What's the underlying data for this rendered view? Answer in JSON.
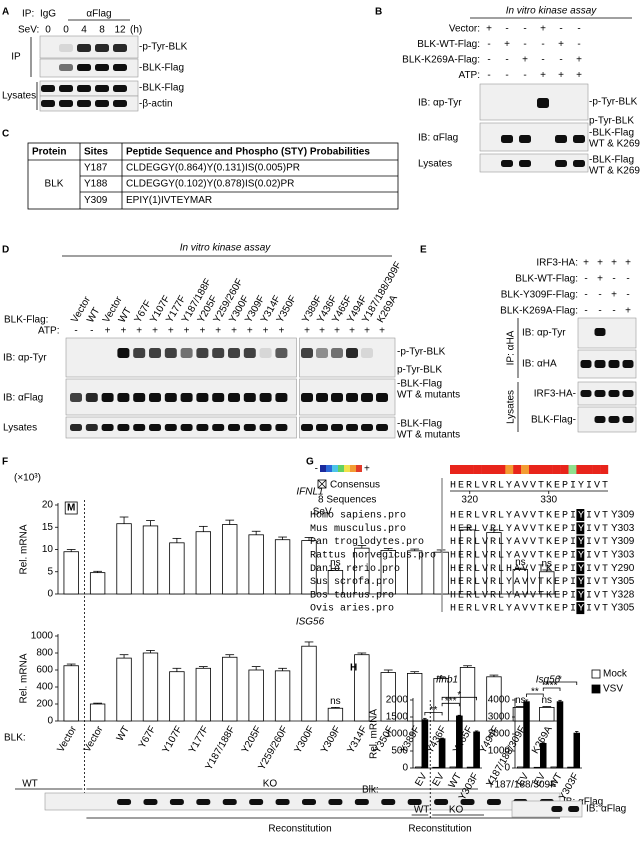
{
  "panel_a": {
    "letter": "A",
    "ip_label": "IP:",
    "igg": "IgG",
    "flag": "αFlag",
    "sev_label": "SeV:",
    "sev_times": [
      0,
      0,
      4,
      8,
      12
    ],
    "time_unit": "(h)",
    "groups": [
      "IP",
      "Lysates"
    ],
    "bands": [
      "-p-Tyr-BLK",
      "-BLK-Flag",
      "-BLK-Flag",
      "-β-actin"
    ]
  },
  "panel_b": {
    "letter": "B",
    "title": "In vitro kinase assay",
    "rows": [
      {
        "label": "Vector:",
        "signs": [
          "+",
          "-",
          "-",
          "+",
          "-",
          "-"
        ]
      },
      {
        "label": "BLK-WT-Flag:",
        "signs": [
          "-",
          "+",
          "-",
          "-",
          "+",
          "-"
        ]
      },
      {
        "label": "BLK-K269A-Flag:",
        "signs": [
          "-",
          "-",
          "+",
          "-",
          "-",
          "+"
        ]
      },
      {
        "label": "ATP:",
        "signs": [
          "-",
          "-",
          "-",
          "+",
          "+",
          "+"
        ]
      }
    ],
    "blots": [
      "IB: αp-Tyr",
      "IB: αFlag",
      "Lysates"
    ],
    "bands": [
      "-p-Tyr-BLK",
      "p-Tyr-BLK",
      "-BLK-Flag",
      "WT & K269A",
      "-BLK-Flag",
      "WT & K269A"
    ]
  },
  "panel_c": {
    "letter": "C",
    "table": {
      "header": [
        "Protein",
        "Sites",
        "Peptide Sequence and Phospho (STY) Probabilities"
      ],
      "protein": "BLK",
      "rows": [
        [
          "Y187",
          "CLDEGGY(0.864)Y(0.131)IS(0.005)PR"
        ],
        [
          "Y188",
          "CLDEGGY(0.102)Y(0.878)IS(0.02)PR"
        ],
        [
          "Y309",
          "EPIY(1)IVTEYMAR"
        ]
      ]
    }
  },
  "panel_d": {
    "letter": "D",
    "title": "In vitro kinase assay",
    "lane_label": "BLK-Flag:",
    "lanes": [
      "Vector",
      "WT",
      "Vector",
      "WT",
      "Y67F",
      "Y107F",
      "Y177F",
      "Y187/188F",
      "Y205F",
      "Y259/260F",
      "Y300F",
      "Y309F",
      "Y314F",
      "Y350F",
      "Y389F",
      "Y436F",
      "Y465F",
      "Y494F",
      "Y187/188/309F",
      "K269A"
    ],
    "atp_label": "ATP:",
    "atp": [
      "-",
      "-",
      "+",
      "+",
      "+",
      "+",
      "+",
      "+",
      "+",
      "+",
      "+",
      "+",
      "+",
      "+",
      "+",
      "+",
      "+",
      "+",
      "+",
      "+"
    ],
    "blots": [
      "IB: αp-Tyr",
      "IB: αFlag",
      "Lysates"
    ],
    "bands": [
      "-p-Tyr-BLK",
      "p-Tyr-BLK",
      "-BLK-Flag",
      "WT & mutants",
      "-BLK-Flag",
      "WT & mutants"
    ]
  },
  "panel_e": {
    "letter": "E",
    "rows": [
      {
        "label": "IRF3-HA:",
        "signs": [
          "+",
          "+",
          "+",
          "+"
        ]
      },
      {
        "label": "BLK-WT-Flag:",
        "signs": [
          "-",
          "+",
          "-",
          "-"
        ]
      },
      {
        "label": "BLK-Y309F-Flag:",
        "signs": [
          "-",
          "-",
          "+",
          "-"
        ]
      },
      {
        "label": "BLK-K269A-Flag:",
        "signs": [
          "-",
          "-",
          "-",
          "+"
        ]
      }
    ],
    "ip": "IP: αHA",
    "blots": [
      "IB: αp-Tyr",
      "IB: αHA"
    ],
    "lysates": "Lysates",
    "lysate_bands": [
      "IRF3-HA-",
      "BLK-Flag-"
    ]
  },
  "panel_f": {
    "letter": "F",
    "multiplier": "(×10³)",
    "mock": "M",
    "infection": "SeV",
    "blk_label": "BLK:",
    "blot_groups": [
      "WT",
      "KO"
    ],
    "blot_lane": "Y187/188/309F",
    "blot_ib": "IB: αFlag",
    "reconstitution": "Reconstitution"
  },
  "panel_g": {
    "letter": "G",
    "key_low": "-",
    "key_high": "+",
    "consensus": "Consensus",
    "count": "8 Sequences",
    "consensus_seq": "HERLVRLYAVVTKEPIYIVT",
    "ruler": [
      320,
      330
    ],
    "rows": [
      {
        "species": "Homo sapiens.pro",
        "sequence": "HERLVRLYAVVTKEPIYIVT",
        "site": "Y309"
      },
      {
        "species": "Mus musculus.pro",
        "sequence": "HERLVRLYAVVTKEPIYIVT",
        "site": "Y303"
      },
      {
        "species": "Pan troglodytes.pro",
        "sequence": "HERLVRLYAVVTKEPIYIVT",
        "site": "Y309"
      },
      {
        "species": "Rattus norvegicus.pro",
        "sequence": "HERLVRLYAVVTKEPIYIVT",
        "site": "Y303"
      },
      {
        "species": "Danio rerio.pro",
        "sequence": "HERLVRLHAVVTKEPIYIVT",
        "site": "Y290"
      },
      {
        "species": "Sus scrofa.pro",
        "sequence": "HERLVRLYAVVTKEPIYIVT",
        "site": "Y305"
      },
      {
        "species": "Bos taurus.pro",
        "sequence": "HERLVRLYAVVTKEPIYIVT",
        "site": "Y328"
      },
      {
        "species": "Ovis aries.pro",
        "sequence": "HERLVRLYAVVTKEPIYIVT",
        "site": "Y305"
      }
    ]
  },
  "panel_h": {
    "letter": "H",
    "blk_label": "Blk:",
    "blot_groups": [
      "WT",
      "KO"
    ],
    "blot_ib": "IB: αFlag",
    "reconstitution": "Reconstitution"
  },
  "chart_data": [
    {
      "type": "bar",
      "title": "IFNL1",
      "ylabel": "Rel. mRNA",
      "color": "#ffffff",
      "values": [
        9.5,
        4.8,
        15.8,
        15.3,
        11.5,
        14.0,
        15.6,
        13.3,
        12.2,
        12.0,
        5.3,
        10.3,
        9.8,
        9.7,
        9.4,
        14.4,
        13.8,
        5.5,
        5.0
      ],
      "errors": [
        0.5,
        0.3,
        1.5,
        1.2,
        1.0,
        1.2,
        1.0,
        0.8,
        0.6,
        0.7,
        0.4,
        0.6,
        0.4,
        0.4,
        0.5,
        0.6,
        0.6,
        0.3,
        0.4
      ],
      "annotations": [
        null,
        null,
        null,
        null,
        null,
        null,
        null,
        null,
        null,
        null,
        "ns",
        null,
        null,
        null,
        null,
        null,
        null,
        "ns",
        "ns"
      ],
      "ylim": [
        0,
        20
      ],
      "yticks": [
        0,
        5,
        10,
        15,
        20
      ]
    },
    {
      "type": "bar",
      "title": "ISG56",
      "ylabel": "Rel. mRNA",
      "color": "#ffffff",
      "categories": [
        "Vector",
        "Vector",
        "WT",
        "Y67F",
        "Y107F",
        "Y177F",
        "Y187/188F",
        "Y205F",
        "Y259/260F",
        "Y300F",
        "Y309F",
        "Y314F",
        "Y350F",
        "Y389F",
        "Y436F",
        "Y465F",
        "Y494F",
        "Y187/188/309F",
        "K269A"
      ],
      "values": [
        650,
        200,
        740,
        800,
        580,
        620,
        750,
        600,
        590,
        880,
        150,
        780,
        570,
        560,
        500,
        630,
        520,
        160,
        160
      ],
      "errors": [
        20,
        10,
        40,
        30,
        40,
        20,
        30,
        40,
        30,
        50,
        10,
        20,
        30,
        20,
        20,
        20,
        20,
        10,
        10
      ],
      "annotations": [
        null,
        null,
        null,
        null,
        null,
        null,
        null,
        null,
        null,
        null,
        "ns",
        null,
        null,
        null,
        null,
        null,
        null,
        "ns",
        "ns"
      ],
      "ylim": [
        0,
        1000
      ],
      "yticks": [
        0,
        200,
        400,
        600,
        800,
        1000
      ]
    },
    {
      "type": "bar",
      "title": "Ifnb1",
      "ylabel": "Rel. mRNA",
      "categories": [
        "EV",
        "EV",
        "WT",
        "Y303F"
      ],
      "series": [
        {
          "color": "#ffffff",
          "values": [
            30,
            20,
            30,
            25
          ]
        },
        {
          "color": "#000000",
          "values": [
            1420,
            860,
            1530,
            1060
          ],
          "errors": [
            40,
            20,
            20,
            30
          ]
        }
      ],
      "significance": [
        "**",
        "***",
        "*"
      ],
      "ylim": [
        0,
        2000
      ],
      "yticks": [
        0,
        500,
        1000,
        1500,
        2000
      ]
    },
    {
      "type": "bar",
      "title": "Isg56",
      "categories": [
        "EV",
        "EV",
        "WT",
        "Y303F"
      ],
      "series": [
        {
          "name": "Mock",
          "color": "#ffffff",
          "values": [
            60,
            40,
            60,
            50
          ]
        },
        {
          "name": "VSV",
          "color": "#000000",
          "values": [
            3900,
            1450,
            3900,
            2050
          ],
          "errors": [
            100,
            30,
            80,
            100
          ]
        }
      ],
      "significance": [
        "**",
        "***",
        "*"
      ],
      "ylim": [
        0,
        4000
      ],
      "yticks": [
        0,
        1000,
        2000,
        3000,
        4000
      ]
    }
  ]
}
